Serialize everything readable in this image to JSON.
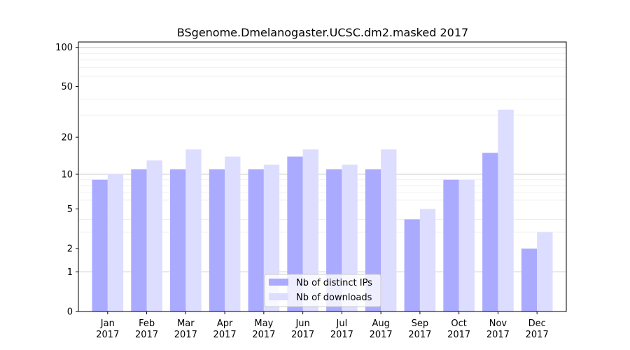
{
  "chart_data": {
    "type": "bar",
    "title": "BSgenome.Dmelanogaster.UCSC.dm2.masked 2017",
    "xlabel": "",
    "ylabel": "",
    "y_scale": "log(1+y)",
    "yticks": [
      0,
      1,
      2,
      5,
      10,
      20,
      50,
      100
    ],
    "ylim": [
      0,
      110
    ],
    "categories": [
      [
        "Jan",
        "2017"
      ],
      [
        "Feb",
        "2017"
      ],
      [
        "Mar",
        "2017"
      ],
      [
        "Apr",
        "2017"
      ],
      [
        "May",
        "2017"
      ],
      [
        "Jun",
        "2017"
      ],
      [
        "Jul",
        "2017"
      ],
      [
        "Aug",
        "2017"
      ],
      [
        "Sep",
        "2017"
      ],
      [
        "Oct",
        "2017"
      ],
      [
        "Nov",
        "2017"
      ],
      [
        "Dec",
        "2017"
      ]
    ],
    "series": [
      {
        "name": "Nb of distinct IPs",
        "color": "#aaaaff",
        "values": [
          9,
          11,
          11,
          11,
          11,
          14,
          11,
          11,
          4,
          9,
          15,
          2
        ]
      },
      {
        "name": "Nb of downloads",
        "color": "#ddddff",
        "values": [
          10,
          13,
          16,
          14,
          12,
          16,
          12,
          16,
          5,
          9,
          33,
          3
        ]
      }
    ],
    "grid": true,
    "legend_position": "bottom-center"
  }
}
